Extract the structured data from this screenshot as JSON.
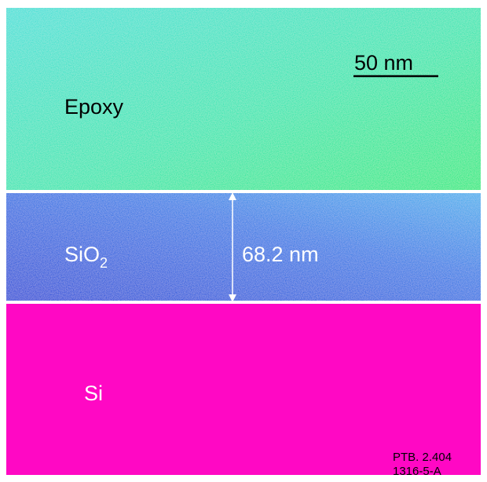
{
  "layers": [
    {
      "label": "Epoxy"
    },
    {
      "label": "SiO",
      "subscript": "2"
    },
    {
      "label": "Si"
    }
  ],
  "scale_bar": {
    "label": "50 nm"
  },
  "measurement": {
    "label": "68.2 nm"
  },
  "footer": {
    "lines": [
      "PTB. 2.404",
      "1316-5-A"
    ]
  }
}
